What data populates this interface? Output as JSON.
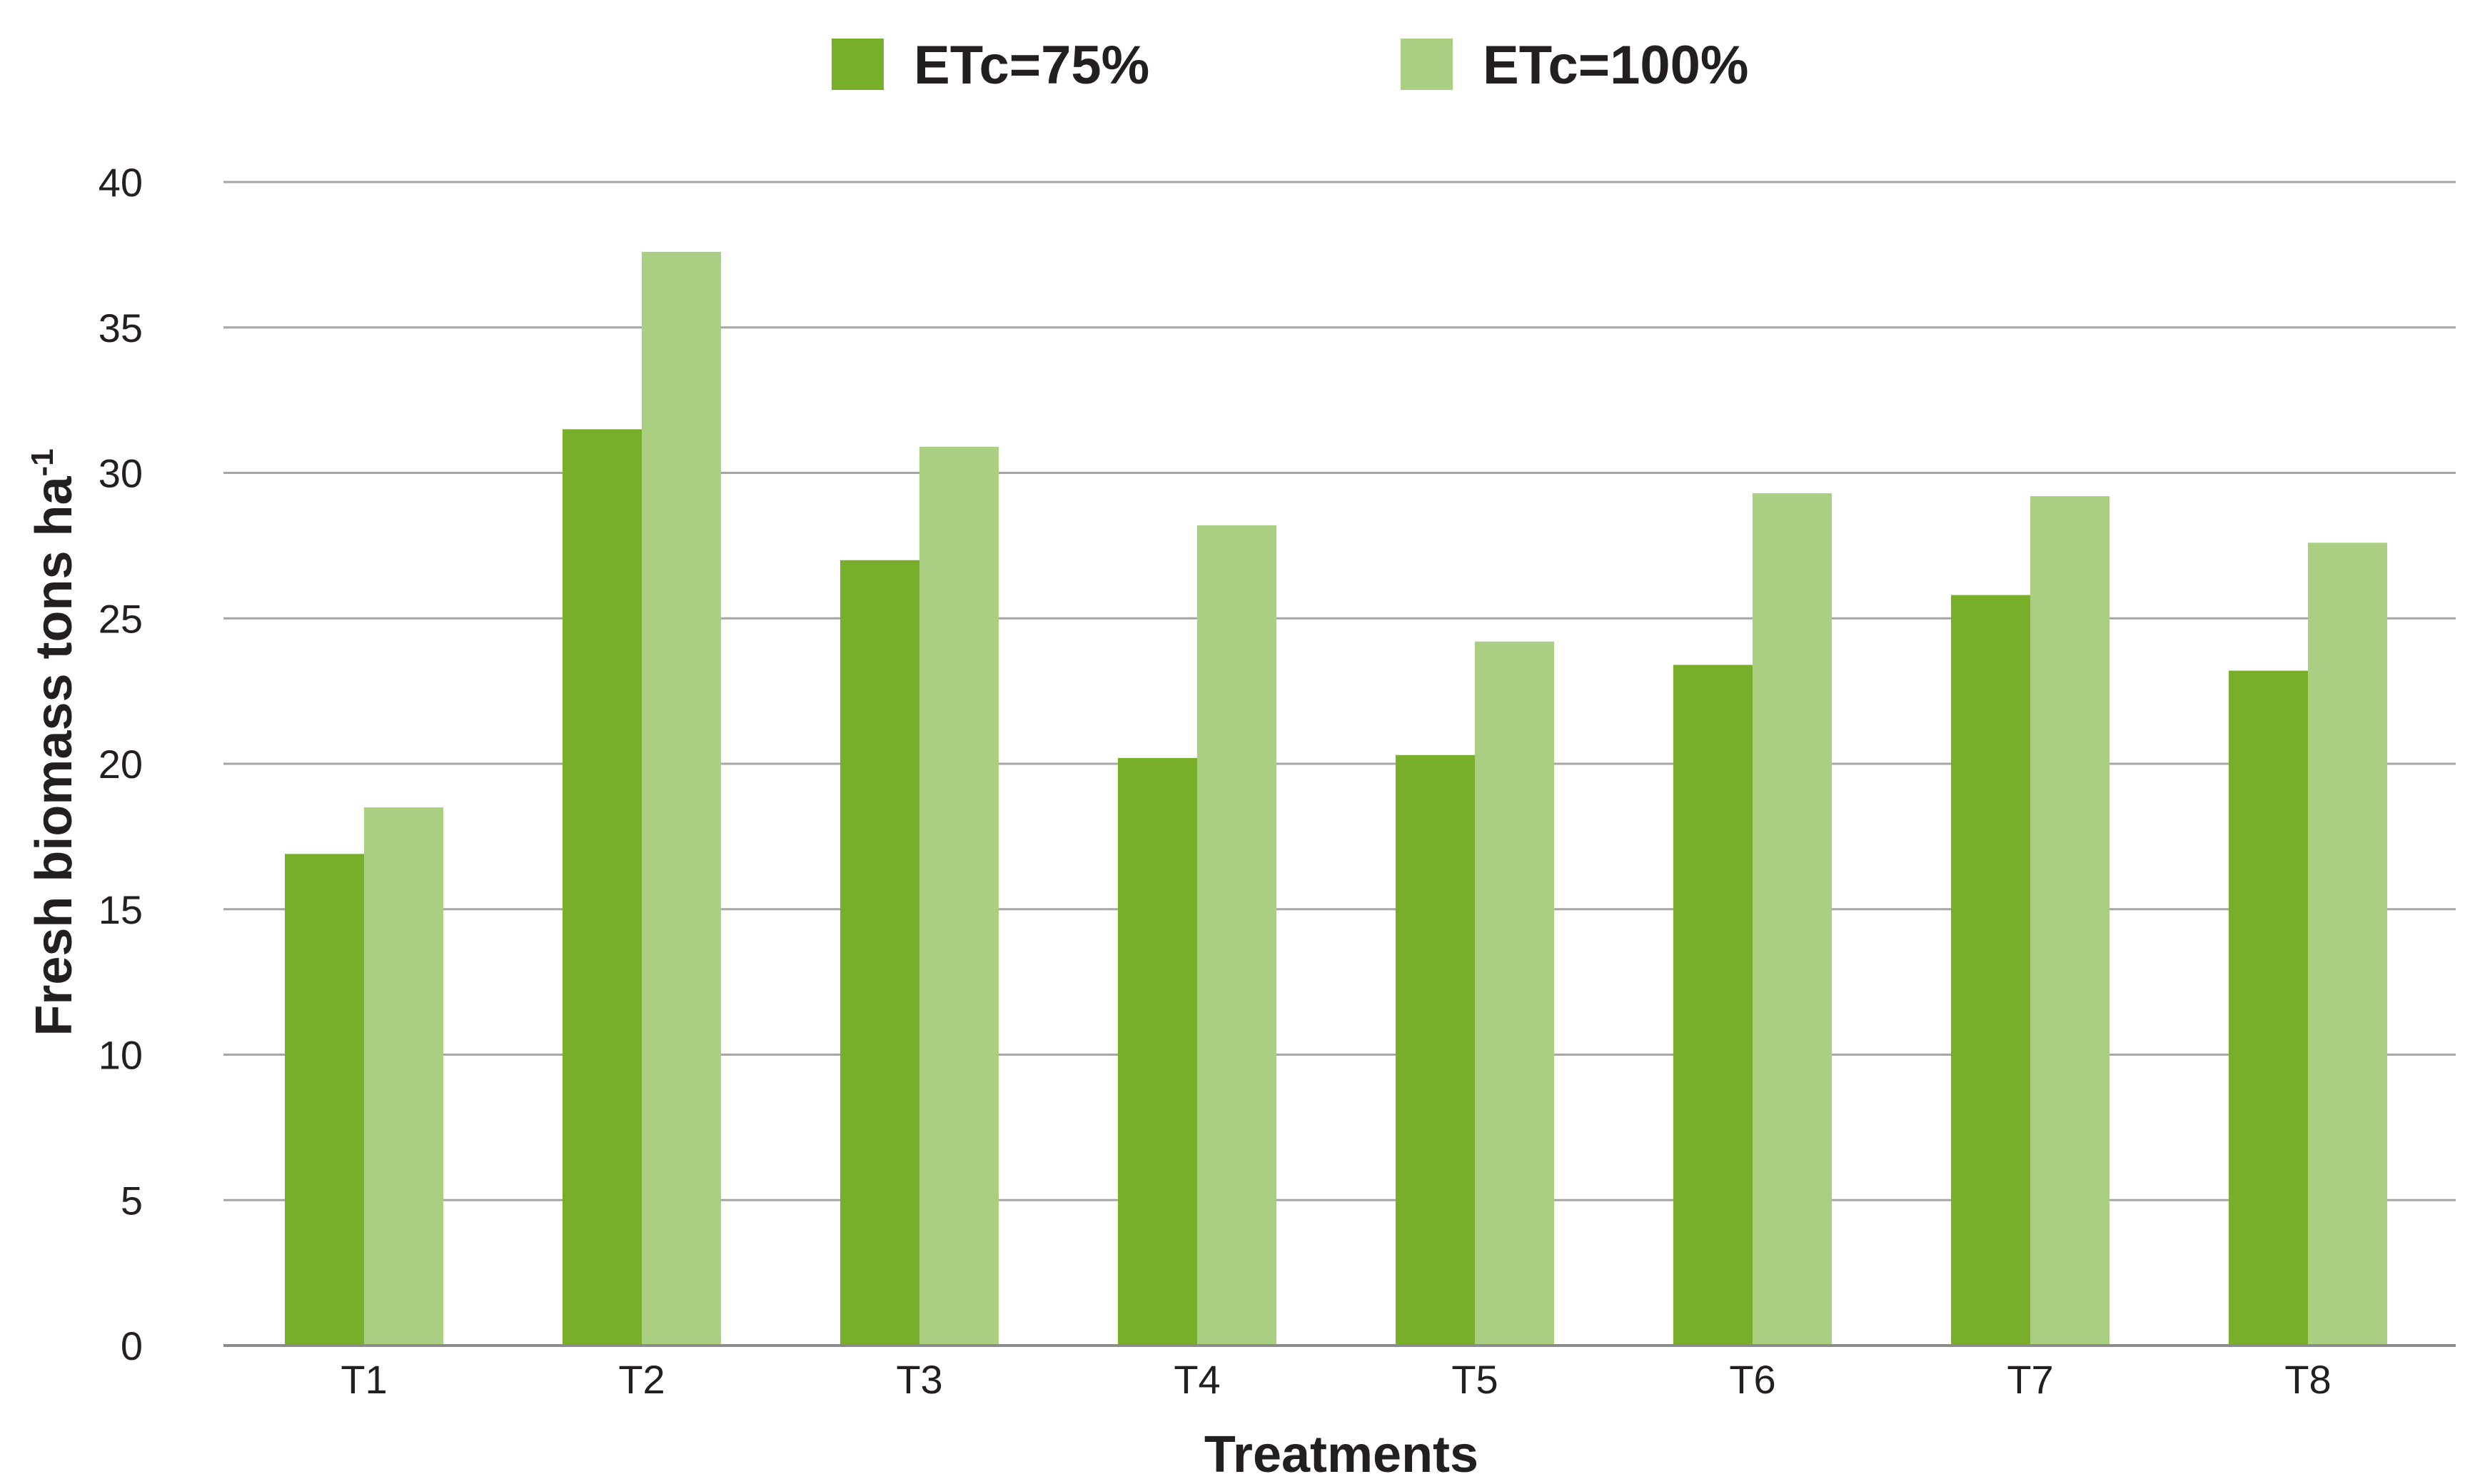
{
  "chart_data": {
    "type": "bar",
    "categories": [
      "T1",
      "T2",
      "T3",
      "T4",
      "T5",
      "T6",
      "T7",
      "T8"
    ],
    "series": [
      {
        "name": "ETc=75%",
        "color": "#78ae2a",
        "values": [
          16.9,
          31.5,
          27.0,
          20.2,
          20.3,
          23.4,
          25.8,
          23.2
        ]
      },
      {
        "name": "ETc=100%",
        "color": "#aacf82",
        "values": [
          18.5,
          37.6,
          30.9,
          28.2,
          24.2,
          29.3,
          29.2,
          27.6
        ]
      }
    ],
    "xlabel": "Treatments",
    "ylabel": "Fresh biomass tons ha",
    "ylabel_superscript": "-1",
    "ylim": [
      0,
      40
    ],
    "yticks": [
      "0",
      "5",
      "10",
      "15",
      "20",
      "25",
      "30",
      "35",
      "40"
    ],
    "grid": true,
    "legend_position": "top-center"
  }
}
